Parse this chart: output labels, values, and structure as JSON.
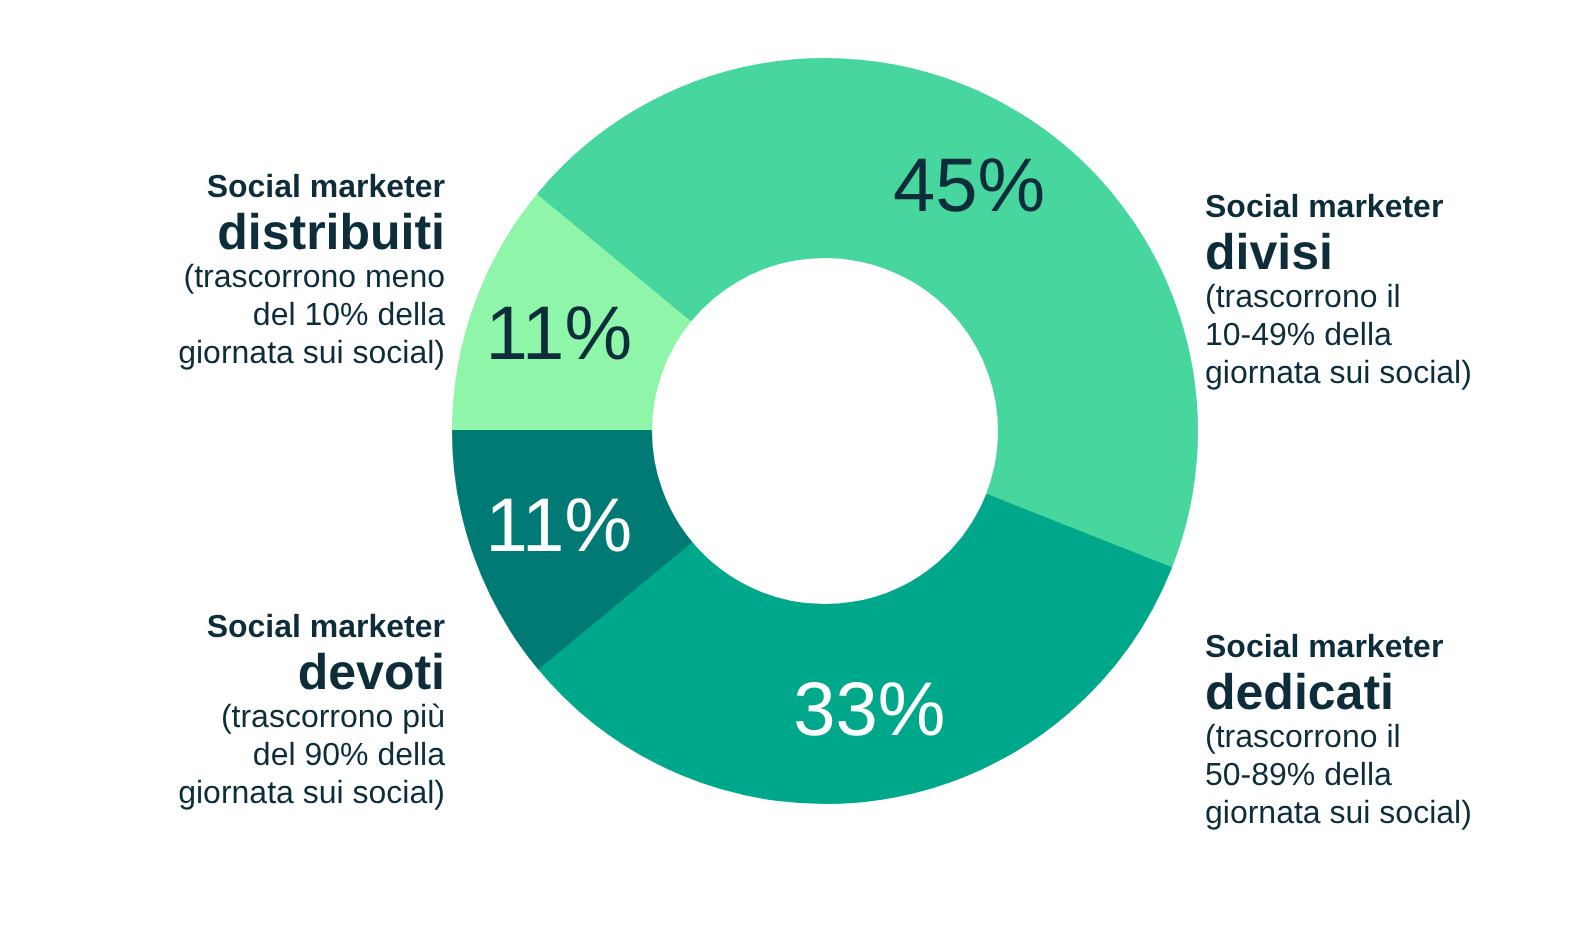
{
  "chart_data": {
    "type": "donut",
    "categories": [
      "Social marketer\ndistribuiti\n(trascorrono meno\ndel 10% della\ngiornata sui social)",
      "Social marketer\ndivisi\n(trascorrono il\n10-49% della\ngiornata sui social)",
      "Social marketer\ndedicati\n(trascorrono il\n50-89% della\ngiornata sui social)",
      "Social marketer\ndevoti\n(trascorrono più\ndel 90% della\ngiornata sui social)"
    ],
    "values": [
      11,
      45,
      33,
      11
    ],
    "colors": [
      "#8ef5a9",
      "#47d69e",
      "#00a88b",
      "#007a74"
    ],
    "value_labels": [
      "11%",
      "45%",
      "33%",
      "11%"
    ]
  }
}
